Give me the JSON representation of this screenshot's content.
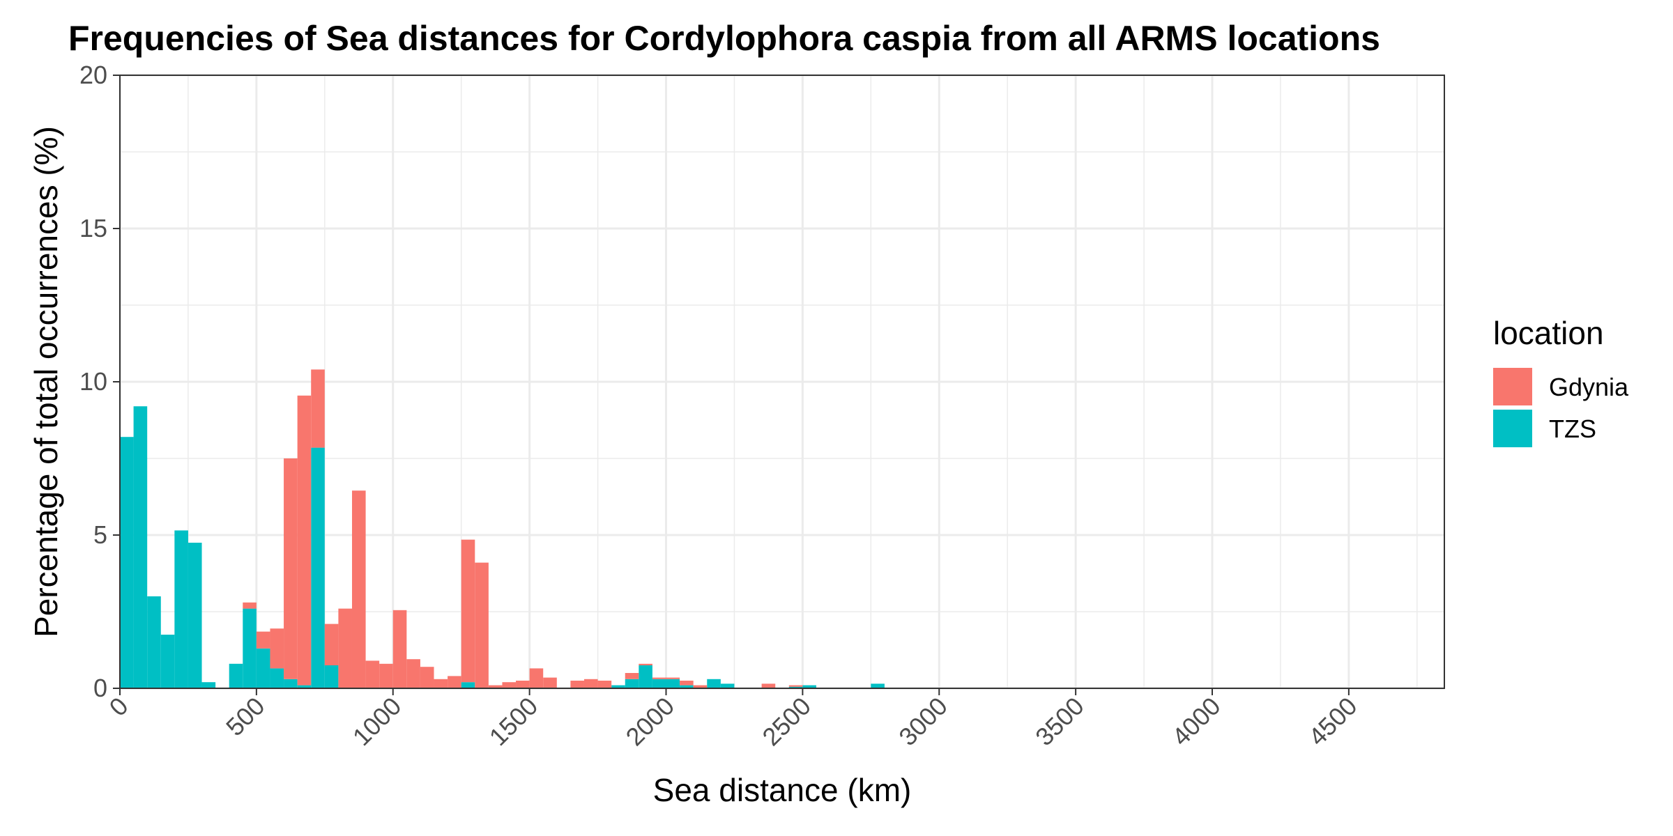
{
  "chart_data": {
    "type": "bar",
    "title": "Frequencies of Sea distances for Cordylophora caspia from all ARMS locations",
    "xlabel": "Sea distance (km)",
    "ylabel": "Percentage of total occurrences (%)",
    "xlim": [
      0,
      4850
    ],
    "ylim": [
      0,
      20
    ],
    "x_ticks": [
      "0",
      "500",
      "1000",
      "1500",
      "2000",
      "2500",
      "3000",
      "3500",
      "4000",
      "4500"
    ],
    "y_ticks": [
      "0",
      "5",
      "10",
      "15",
      "20"
    ],
    "bin_width": 50,
    "grid": true,
    "stacked": true,
    "legend": {
      "title": "location",
      "placement": "right",
      "entries": [
        "Gdynia",
        "TZS"
      ]
    },
    "colors": {
      "Gdynia": "#F8766D",
      "TZS": "#00BFC4"
    },
    "series": [
      {
        "name": "TZS",
        "x": [
          0,
          50,
          100,
          150,
          200,
          250,
          300,
          400,
          450,
          500,
          550,
          600,
          650,
          700,
          750,
          1250,
          1800,
          1850,
          1900,
          1950,
          2000,
          2050,
          2150,
          2200,
          2450,
          2500,
          2750
        ],
        "values": [
          8.2,
          9.2,
          3.0,
          1.75,
          5.15,
          4.75,
          0.2,
          0.8,
          2.6,
          1.3,
          0.65,
          0.3,
          0.1,
          7.85,
          0.75,
          0.2,
          0.1,
          0.3,
          0.75,
          0.3,
          0.3,
          0.1,
          0.3,
          0.15,
          0.05,
          0.1,
          0.15
        ]
      },
      {
        "name": "Gdynia",
        "x": [
          450,
          500,
          550,
          600,
          650,
          700,
          750,
          800,
          850,
          900,
          950,
          1000,
          1050,
          1100,
          1150,
          1200,
          1250,
          1300,
          1350,
          1400,
          1450,
          1500,
          1550,
          1650,
          1700,
          1750,
          1850,
          1900,
          1950,
          2000,
          2050,
          2100,
          2350,
          2450
        ],
        "values": [
          0.2,
          0.55,
          1.3,
          7.2,
          9.45,
          2.55,
          1.35,
          2.6,
          6.45,
          0.9,
          0.8,
          2.55,
          0.95,
          0.7,
          0.3,
          0.4,
          4.65,
          4.1,
          0.1,
          0.2,
          0.25,
          0.65,
          0.35,
          0.25,
          0.3,
          0.25,
          0.2,
          0.05,
          0.05,
          0.05,
          0.15,
          0.1,
          0.15,
          0.05
        ]
      }
    ]
  }
}
